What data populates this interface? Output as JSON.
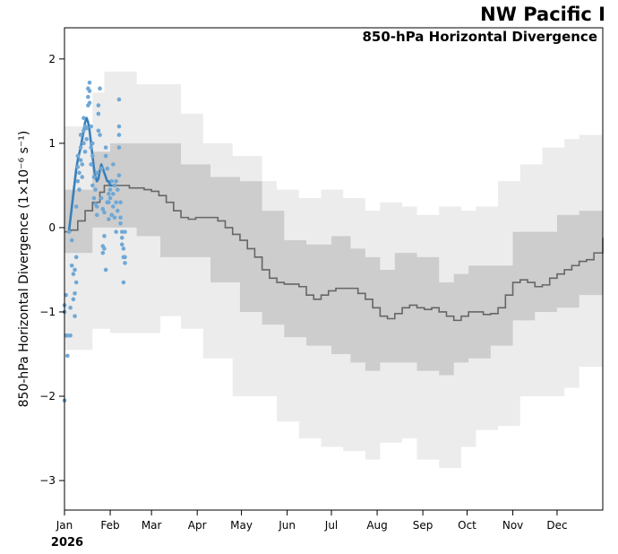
{
  "chart_data": {
    "type": "line",
    "title": "NW Pacific I",
    "subtitle": "850-hPa Horizontal Divergence",
    "xlabel": "",
    "year_label": "2026",
    "ylabel": "850-hPa Horizontal Divergence (1×10⁻⁶ s⁻¹)",
    "xlim": [
      1,
      366
    ],
    "ylim": [
      -3.35,
      2.37
    ],
    "x_ticks": [
      {
        "day": 1,
        "label": "Jan"
      },
      {
        "day": 32,
        "label": "Feb"
      },
      {
        "day": 60,
        "label": "Mar"
      },
      {
        "day": 91,
        "label": "Apr"
      },
      {
        "day": 121,
        "label": "May"
      },
      {
        "day": 152,
        "label": "Jun"
      },
      {
        "day": 182,
        "label": "Jul"
      },
      {
        "day": 213,
        "label": "Aug"
      },
      {
        "day": 244,
        "label": "Sep"
      },
      {
        "day": 274,
        "label": "Oct"
      },
      {
        "day": 305,
        "label": "Nov"
      },
      {
        "day": 335,
        "label": "Dec"
      }
    ],
    "y_ticks": [
      {
        "value": 2,
        "label": "2"
      },
      {
        "value": 1,
        "label": "1"
      },
      {
        "value": 0,
        "label": "0"
      },
      {
        "value": -1,
        "label": "−1"
      },
      {
        "value": -2,
        "label": "−2"
      },
      {
        "value": -3,
        "label": "−3"
      }
    ],
    "series": [
      {
        "name": "outer-range",
        "kind": "band",
        "color": "#ececec",
        "x": [
          1,
          20,
          28,
          32,
          50,
          66,
          80,
          95,
          115,
          135,
          145,
          160,
          175,
          190,
          205,
          215,
          230,
          240,
          255,
          270,
          280,
          295,
          310,
          325,
          340,
          350,
          366
        ],
        "upper": [
          1.2,
          1.6,
          1.85,
          1.85,
          1.7,
          1.7,
          1.35,
          1.0,
          0.85,
          0.55,
          0.45,
          0.35,
          0.45,
          0.35,
          0.2,
          0.3,
          0.25,
          0.15,
          0.25,
          0.2,
          0.25,
          0.55,
          0.75,
          0.95,
          1.05,
          1.1,
          1.15
        ],
        "lower": [
          -1.6,
          -1.45,
          -1.2,
          -1.2,
          -1.25,
          -1.25,
          -1.05,
          -1.2,
          -1.55,
          -2.0,
          -2.0,
          -2.3,
          -2.5,
          -2.6,
          -2.65,
          -2.75,
          -2.55,
          -2.5,
          -2.75,
          -2.85,
          -2.6,
          -2.4,
          -2.35,
          -2.0,
          -2.0,
          -1.9,
          -1.65
        ]
      },
      {
        "name": "inner-range",
        "kind": "band",
        "color": "#cdcdcd",
        "x": [
          1,
          20,
          32,
          50,
          66,
          80,
          100,
          120,
          135,
          150,
          165,
          182,
          195,
          205,
          215,
          225,
          240,
          255,
          265,
          275,
          290,
          305,
          320,
          335,
          350,
          366
        ],
        "upper": [
          0.45,
          0.9,
          1.0,
          1.0,
          1.0,
          0.75,
          0.6,
          0.55,
          0.2,
          -0.15,
          -0.2,
          -0.1,
          -0.25,
          -0.35,
          -0.5,
          -0.3,
          -0.35,
          -0.65,
          -0.55,
          -0.45,
          -0.45,
          -0.05,
          -0.05,
          0.15,
          0.2,
          0.45
        ],
        "lower": [
          -0.7,
          -0.3,
          0.0,
          0.0,
          -0.1,
          -0.35,
          -0.35,
          -0.65,
          -1.0,
          -1.15,
          -1.3,
          -1.4,
          -1.5,
          -1.6,
          -1.7,
          -1.6,
          -1.6,
          -1.7,
          -1.75,
          -1.6,
          -1.55,
          -1.4,
          -1.1,
          -1.0,
          -0.95,
          -0.8
        ]
      },
      {
        "name": "climatology-median",
        "kind": "line",
        "color": "#666666",
        "x": [
          1,
          5,
          10,
          15,
          20,
          25,
          28,
          32,
          40,
          45,
          50,
          55,
          60,
          65,
          70,
          75,
          80,
          85,
          90,
          95,
          100,
          105,
          110,
          115,
          120,
          125,
          130,
          135,
          140,
          145,
          150,
          155,
          160,
          165,
          170,
          175,
          180,
          185,
          190,
          195,
          200,
          205,
          210,
          215,
          220,
          225,
          230,
          235,
          240,
          245,
          250,
          255,
          260,
          265,
          270,
          275,
          280,
          285,
          290,
          295,
          300,
          305,
          310,
          315,
          320,
          325,
          330,
          335,
          340,
          345,
          350,
          355,
          360,
          366
        ],
        "values": [
          -0.05,
          -0.03,
          0.08,
          0.2,
          0.3,
          0.42,
          0.5,
          0.5,
          0.5,
          0.47,
          0.47,
          0.45,
          0.43,
          0.38,
          0.3,
          0.2,
          0.12,
          0.1,
          0.12,
          0.12,
          0.12,
          0.08,
          0.0,
          -0.08,
          -0.15,
          -0.25,
          -0.35,
          -0.5,
          -0.6,
          -0.65,
          -0.67,
          -0.67,
          -0.7,
          -0.8,
          -0.85,
          -0.8,
          -0.75,
          -0.72,
          -0.72,
          -0.72,
          -0.78,
          -0.85,
          -0.95,
          -1.05,
          -1.08,
          -1.02,
          -0.95,
          -0.92,
          -0.95,
          -0.97,
          -0.95,
          -1.0,
          -1.05,
          -1.1,
          -1.05,
          -1.0,
          -1.0,
          -1.03,
          -1.02,
          -0.95,
          -0.8,
          -0.65,
          -0.62,
          -0.65,
          -0.7,
          -0.68,
          -0.6,
          -0.55,
          -0.5,
          -0.45,
          -0.4,
          -0.38,
          -0.3,
          -0.12
        ]
      },
      {
        "name": "observed-2026",
        "kind": "line",
        "color": "#3a7fb8",
        "x": [
          4,
          5,
          6,
          7,
          8,
          9,
          10,
          11,
          12,
          13,
          14,
          15,
          16,
          17,
          18,
          19,
          20,
          21,
          22,
          23,
          24,
          25,
          26,
          27,
          28,
          29,
          30,
          31,
          32,
          33
        ],
        "values": [
          -0.05,
          0.1,
          0.25,
          0.4,
          0.55,
          0.7,
          0.8,
          0.88,
          0.95,
          1.05,
          1.15,
          1.25,
          1.3,
          1.25,
          1.15,
          1.0,
          0.85,
          0.7,
          0.6,
          0.55,
          0.58,
          0.68,
          0.75,
          0.7,
          0.65,
          0.6,
          0.55,
          0.55,
          0.5,
          0.5
        ]
      }
    ],
    "scatter": {
      "name": "ensemble-members",
      "color": "#6fa8d6",
      "points": [
        [
          1,
          -2.05
        ],
        [
          1,
          -0.92
        ],
        [
          1,
          -1.0
        ],
        [
          2,
          -0.8
        ],
        [
          2,
          -1.28
        ],
        [
          3,
          -1.52
        ],
        [
          3,
          -1.28
        ],
        [
          4,
          -0.05
        ],
        [
          5,
          -1.28
        ],
        [
          5,
          -0.95
        ],
        [
          6,
          -0.45
        ],
        [
          6,
          -0.15
        ],
        [
          7,
          -0.55
        ],
        [
          7,
          -0.85
        ],
        [
          8,
          -1.05
        ],
        [
          8,
          -0.78
        ],
        [
          8,
          -0.5
        ],
        [
          9,
          -0.65
        ],
        [
          9,
          -0.35
        ],
        [
          9,
          0.25
        ],
        [
          10,
          0.55
        ],
        [
          10,
          0.72
        ],
        [
          10,
          0.85
        ],
        [
          11,
          0.45
        ],
        [
          11,
          0.65
        ],
        [
          12,
          0.8
        ],
        [
          12,
          0.95
        ],
        [
          12,
          1.1
        ],
        [
          13,
          0.75
        ],
        [
          13,
          0.6
        ],
        [
          14,
          1.0
        ],
        [
          14,
          1.15
        ],
        [
          14,
          1.3
        ],
        [
          15,
          0.9
        ],
        [
          15,
          1.2
        ],
        [
          16,
          1.05
        ],
        [
          16,
          1.18
        ],
        [
          17,
          1.45
        ],
        [
          17,
          1.55
        ],
        [
          17,
          1.65
        ],
        [
          18,
          1.48
        ],
        [
          18,
          1.62
        ],
        [
          18,
          1.72
        ],
        [
          19,
          1.2
        ],
        [
          19,
          0.95
        ],
        [
          19,
          0.75
        ],
        [
          20,
          0.5
        ],
        [
          20,
          0.85
        ],
        [
          20,
          1.0
        ],
        [
          21,
          0.6
        ],
        [
          21,
          0.35
        ],
        [
          22,
          0.28
        ],
        [
          22,
          0.45
        ],
        [
          23,
          0.25
        ],
        [
          23,
          0.15
        ],
        [
          23,
          0.65
        ],
        [
          24,
          1.15
        ],
        [
          24,
          1.35
        ],
        [
          24,
          1.45
        ],
        [
          25,
          1.65
        ],
        [
          25,
          1.1
        ],
        [
          26,
          0.7
        ],
        [
          26,
          0.35
        ],
        [
          27,
          0.22
        ],
        [
          27,
          -0.22
        ],
        [
          27,
          -0.3
        ],
        [
          28,
          -0.25
        ],
        [
          28,
          -0.1
        ],
        [
          28,
          0.18
        ],
        [
          29,
          -0.5
        ],
        [
          29,
          0.85
        ],
        [
          29,
          0.95
        ],
        [
          30,
          0.3
        ],
        [
          30,
          0.7
        ],
        [
          31,
          0.4
        ],
        [
          31,
          0.1
        ],
        [
          31,
          0.3
        ],
        [
          32,
          0.45
        ],
        [
          32,
          0.35
        ],
        [
          33,
          0.15
        ],
        [
          33,
          0.55
        ],
        [
          34,
          0.25
        ],
        [
          34,
          0.4
        ],
        [
          34,
          0.75
        ],
        [
          35,
          0.12
        ],
        [
          35,
          0.5
        ],
        [
          36,
          0.55
        ],
        [
          36,
          0.3
        ],
        [
          36,
          -0.05
        ],
        [
          37,
          0.45
        ],
        [
          37,
          0.2
        ],
        [
          38,
          0.95
        ],
        [
          38,
          0.62
        ],
        [
          38,
          1.1
        ],
        [
          38,
          1.2
        ],
        [
          38,
          1.52
        ],
        [
          39,
          0.3
        ],
        [
          39,
          0.12
        ],
        [
          39,
          0.05
        ],
        [
          40,
          -0.2
        ],
        [
          40,
          -0.12
        ],
        [
          40,
          -0.05
        ],
        [
          41,
          -0.35
        ],
        [
          41,
          -0.65
        ],
        [
          41,
          -0.25
        ],
        [
          42,
          -0.05
        ],
        [
          42,
          -0.35
        ],
        [
          42,
          -0.42
        ]
      ]
    }
  }
}
